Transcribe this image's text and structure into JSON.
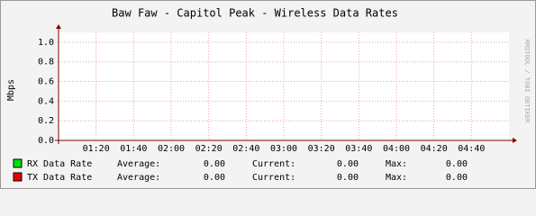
{
  "chart_data": {
    "type": "line",
    "title": "Baw Faw - Capitol Peak - Wireless Data Rates",
    "y_label": "Mbps",
    "side_label": "RRDTOOL / TOBI OETIKER",
    "xlim": [
      "01:00",
      "05:00"
    ],
    "xticks": [
      "01:20",
      "01:40",
      "02:00",
      "02:20",
      "02:40",
      "03:00",
      "03:20",
      "03:40",
      "04:00",
      "04:20",
      "04:40"
    ],
    "ylim": [
      0,
      1.1
    ],
    "yticks": [
      {
        "value": 0,
        "label": "0.0"
      },
      {
        "value": 0.2,
        "label": "0.2"
      },
      {
        "value": 0.4,
        "label": "0.4"
      },
      {
        "value": 0.6,
        "label": "0.6"
      },
      {
        "value": 0.8,
        "label": "0.8"
      },
      {
        "value": 1,
        "label": "1.0"
      }
    ],
    "grid": true,
    "stat_names": [
      "Average:",
      "Current:",
      "Max:"
    ],
    "series": [
      {
        "name": "RX Data Rate",
        "color": "#00e000",
        "stats": [
          0,
          0,
          0
        ],
        "stat_labels": [
          "0.00",
          "0.00",
          "0.00"
        ]
      },
      {
        "name": "TX Data Rate",
        "color": "#ee0000",
        "stats": [
          0,
          0,
          0
        ],
        "stat_labels": [
          "0.00",
          "0.00",
          "0.00"
        ]
      }
    ]
  }
}
